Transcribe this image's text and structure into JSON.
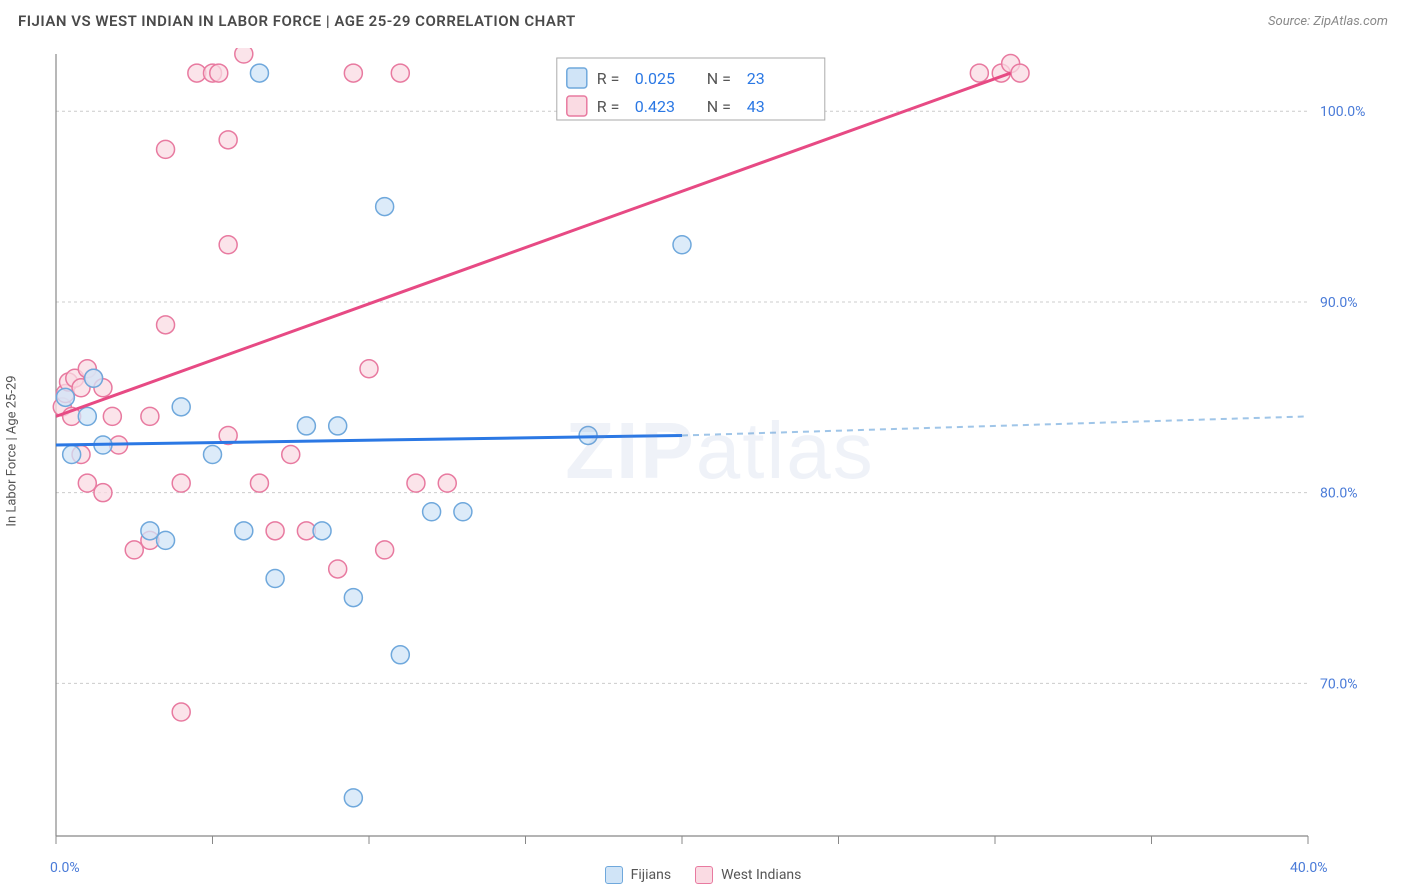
{
  "header": {
    "title": "FIJIAN VS WEST INDIAN IN LABOR FORCE | AGE 25-29 CORRELATION CHART",
    "source_label": "Source: ZipAtlas.com"
  },
  "chart": {
    "type": "scatter",
    "ylabel": "In Labor Force | Age 25-29",
    "watermark": "ZIPatlas",
    "xlim": [
      0,
      40
    ],
    "ylim": [
      62,
      103
    ],
    "x_ticks": [
      0,
      5,
      10,
      15,
      20,
      25,
      30,
      35,
      40
    ],
    "x_tick_labels": {
      "0": "0.0%",
      "40": "40.0%"
    },
    "y_gridlines": [
      70,
      80,
      90,
      100
    ],
    "y_tick_labels": {
      "70": "70.0%",
      "80": "80.0%",
      "90": "90.0%",
      "100": "100.0%"
    },
    "background_color": "#ffffff",
    "grid_color": "#cccccc",
    "grid_dash": "3,3",
    "axis_color": "#888888",
    "tick_label_color": "#4a7bd8",
    "label_fontsize": 13,
    "tick_fontsize": 14,
    "series": [
      {
        "name": "Fijians",
        "marker_fill": "#d0e4f7",
        "marker_stroke": "#6fa8dc",
        "marker_radius": 9,
        "marker_opacity": 0.75,
        "line_color": "#2b78e4",
        "line_width": 3,
        "dash_color": "#9fc5e8",
        "R": "0.025",
        "N": "23",
        "trend": {
          "x1": 0,
          "y1": 82.5,
          "x2": 20,
          "y2": 83.0,
          "x_dash_end": 40,
          "y_dash_end": 84.0
        },
        "points": [
          [
            0.3,
            85.0
          ],
          [
            0.5,
            82.0
          ],
          [
            1.0,
            84.0
          ],
          [
            1.2,
            86.0
          ],
          [
            1.5,
            82.5
          ],
          [
            3.0,
            78.0
          ],
          [
            3.5,
            77.5
          ],
          [
            4.0,
            84.5
          ],
          [
            5.0,
            82.0
          ],
          [
            6.0,
            78.0
          ],
          [
            6.5,
            102.0
          ],
          [
            7.0,
            75.5
          ],
          [
            8.0,
            83.5
          ],
          [
            8.5,
            78.0
          ],
          [
            9.0,
            83.5
          ],
          [
            9.5,
            64.0
          ],
          [
            9.5,
            74.5
          ],
          [
            10.5,
            95.0
          ],
          [
            11.0,
            71.5
          ],
          [
            12.0,
            79.0
          ],
          [
            13.0,
            79.0
          ],
          [
            17.0,
            83.0
          ],
          [
            20.0,
            93.0
          ]
        ]
      },
      {
        "name": "West Indians",
        "marker_fill": "#fadbe3",
        "marker_stroke": "#e87aa0",
        "marker_radius": 9,
        "marker_opacity": 0.75,
        "line_color": "#e74a84",
        "line_width": 3,
        "R": "0.423",
        "N": "43",
        "trend": {
          "x1": 0,
          "y1": 84.0,
          "x2": 30.5,
          "y2": 102.0
        },
        "points": [
          [
            0.2,
            84.5
          ],
          [
            0.3,
            85.2
          ],
          [
            0.4,
            85.8
          ],
          [
            0.5,
            84.0
          ],
          [
            0.6,
            86.0
          ],
          [
            0.8,
            85.5
          ],
          [
            0.8,
            82.0
          ],
          [
            1.0,
            86.5
          ],
          [
            1.0,
            80.5
          ],
          [
            1.2,
            86.0
          ],
          [
            1.5,
            85.5
          ],
          [
            1.5,
            80.0
          ],
          [
            1.8,
            84.0
          ],
          [
            2.0,
            82.5
          ],
          [
            2.5,
            77.0
          ],
          [
            3.0,
            84.0
          ],
          [
            3.0,
            77.5
          ],
          [
            3.5,
            98.0
          ],
          [
            3.5,
            88.8
          ],
          [
            4.0,
            68.5
          ],
          [
            4.0,
            80.5
          ],
          [
            4.5,
            102.0
          ],
          [
            5.0,
            102.0
          ],
          [
            5.2,
            102.0
          ],
          [
            5.5,
            98.5
          ],
          [
            5.5,
            83.0
          ],
          [
            5.5,
            93.0
          ],
          [
            6.0,
            103.0
          ],
          [
            6.5,
            80.5
          ],
          [
            7.0,
            78.0
          ],
          [
            7.5,
            82.0
          ],
          [
            8.0,
            78.0
          ],
          [
            9.0,
            76.0
          ],
          [
            9.5,
            102.0
          ],
          [
            10.0,
            86.5
          ],
          [
            10.5,
            77.0
          ],
          [
            11.0,
            102.0
          ],
          [
            11.5,
            80.5
          ],
          [
            12.5,
            80.5
          ],
          [
            29.5,
            102.0
          ],
          [
            30.2,
            102.0
          ],
          [
            30.5,
            102.5
          ],
          [
            30.8,
            102.0
          ]
        ]
      }
    ],
    "top_legend": {
      "border_color": "#aaaaaa",
      "bg_color": "#ffffff",
      "text_color": "#555555",
      "value_color": "#2b78e4",
      "swatch_size": 20,
      "fontsize": 16
    },
    "bottom_legend": {
      "labels": [
        "Fijians",
        "West Indians"
      ]
    }
  }
}
